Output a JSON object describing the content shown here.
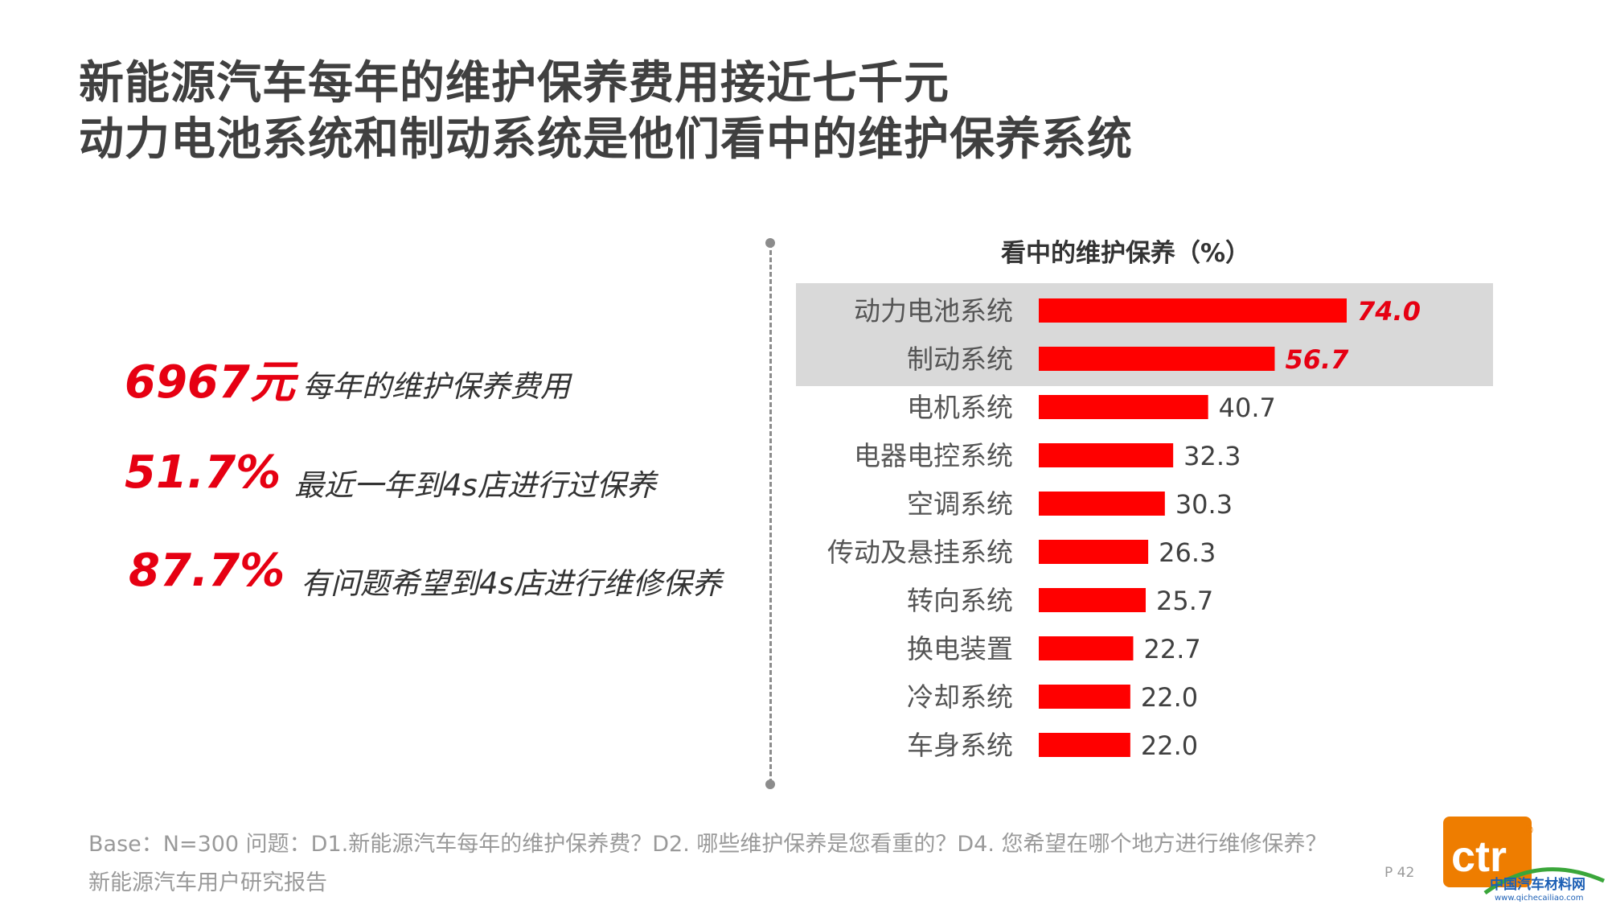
{
  "title": {
    "line1": "新能源汽车每年的维护保养费用接近七千元",
    "line2": "动力电池系统和制动系统是他们看中的维护保养系统"
  },
  "stats": [
    {
      "value": "6967元",
      "desc": "每年的维护保养费用"
    },
    {
      "value": "51.7%",
      "desc": "最近一年到4s店进行过保养"
    },
    {
      "value": "87.7%",
      "desc": "有问题希望到4s店进行维修保养"
    }
  ],
  "colors": {
    "accent": "#e60012",
    "highlight_band": "#d9d9d9",
    "title_text": "#404040",
    "footer_text": "#9a9a9a",
    "logo_orange": "#ee7d00"
  },
  "chart_data": {
    "type": "bar",
    "orientation": "horizontal",
    "title": "看中的维护保养（%）",
    "categories": [
      "动力电池系统",
      "制动系统",
      "电机系统",
      "电器电控系统",
      "空调系统",
      "传动及悬挂系统",
      "转向系统",
      "换电装置",
      "冷却系统",
      "车身系统"
    ],
    "values": [
      74.0,
      56.7,
      40.7,
      32.3,
      30.3,
      26.3,
      25.7,
      22.7,
      22.0,
      22.0
    ],
    "value_labels": [
      "74.0",
      "56.7",
      "40.7",
      "32.3",
      "30.3",
      "26.3",
      "25.7",
      "22.7",
      "22.0",
      "22.0"
    ],
    "highlighted": [
      "动力电池系统",
      "制动系统"
    ],
    "bar_color": "#ff0000",
    "xlim": [
      0,
      74.0
    ],
    "grid": false,
    "legend": "none"
  },
  "footer": {
    "base": "Base：N=300    问题：D1.新能源汽车每年的维护保养费？D2. 哪些维护保养是您看重的？D4. 您希望在哪个地方进行维修保养？",
    "source": "新能源汽车用户研究报告",
    "page": "P 42"
  },
  "logo": {
    "text": "ctr",
    "registered": "®",
    "watermark_cn": "中国汽车材料网",
    "watermark_url": "www.qichecailiao.com"
  }
}
